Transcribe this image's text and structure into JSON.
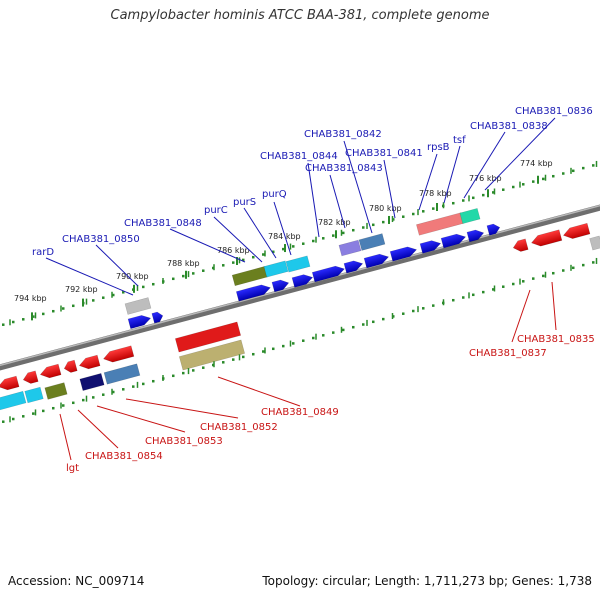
{
  "title": "Campylobacter hominis ATCC BAA-381, complete genome",
  "accession": "Accession: NC_009714",
  "topology": "Topology: circular; Length: 1,711,273 bp; Genes: 1,738",
  "colors": {
    "forward_label": "#1a1ab4",
    "reverse_label": "#c81414",
    "backbone": "#888888",
    "tick": "#2a8a2a",
    "cds_blue": "#0a0ae6",
    "cds_red": "#e61414"
  },
  "tick_labels": [
    "774 kbp",
    "776 kbp",
    "778 kbp",
    "780 kbp",
    "782 kbp",
    "784 kbp",
    "786 kbp",
    "788 kbp",
    "790 kbp",
    "792 kbp",
    "794 kbp"
  ],
  "forward_genes": [
    "CHAB381_0836",
    "CHAB381_0838",
    "tsf",
    "rpsB",
    "CHAB381_0842",
    "CHAB381_0841",
    "CHAB381_0844",
    "CHAB381_0843",
    "purQ",
    "purS",
    "purC",
    "CHAB381_0848",
    "CHAB381_0850",
    "rarD"
  ],
  "reverse_genes": [
    "CHAB381_0835",
    "CHAB381_0837",
    "CHAB381_0849",
    "CHAB381_0852",
    "CHAB381_0853",
    "CHAB381_0854",
    "lgt"
  ]
}
